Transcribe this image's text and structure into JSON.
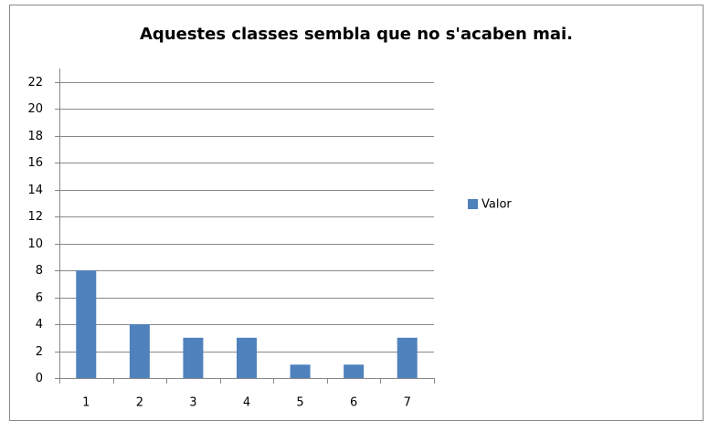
{
  "chart_data": {
    "type": "bar",
    "title": "Aquestes classes sembla que no s'acaben mai.",
    "categories": [
      "1",
      "2",
      "3",
      "4",
      "5",
      "6",
      "7"
    ],
    "series": [
      {
        "name": "Valor",
        "color": "#4f81bd",
        "values": [
          8,
          4,
          3,
          3,
          1,
          1,
          3
        ]
      }
    ],
    "ylim": [
      0,
      22
    ],
    "yticks": [
      0,
      2,
      4,
      6,
      8,
      10,
      12,
      14,
      16,
      18,
      20,
      22
    ],
    "grid": true,
    "legend": "right"
  }
}
